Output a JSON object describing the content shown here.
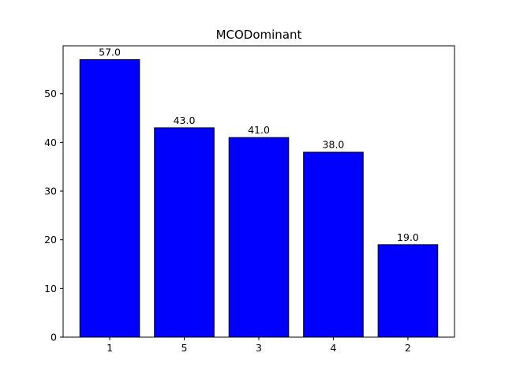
{
  "chart_data": {
    "type": "bar",
    "title": "MCODominant",
    "xlabel": "",
    "ylabel": "",
    "categories": [
      "1",
      "5",
      "3",
      "4",
      "2"
    ],
    "values": [
      57.0,
      43.0,
      41.0,
      38.0,
      19.0
    ],
    "data_labels": [
      "57.0",
      "43.0",
      "41.0",
      "38.0",
      "19.0"
    ],
    "ylim": [
      0,
      59.85
    ],
    "yticks": [
      0,
      10,
      20,
      30,
      40,
      50
    ],
    "ytick_labels": [
      "0",
      "10",
      "20",
      "30",
      "40",
      "50"
    ],
    "grid": false,
    "legend": "none",
    "bar_color": "#0000ff",
    "bar_edge_color": "#000000"
  }
}
